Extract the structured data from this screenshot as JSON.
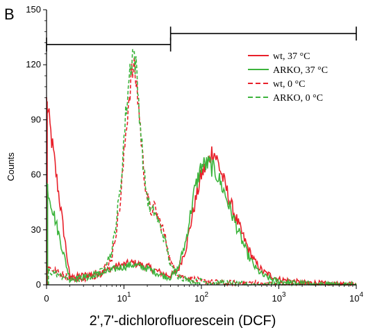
{
  "chart_data": {
    "type": "line",
    "panel_label": "B",
    "xlabel": "2',7'-dichlorofluorescein (DCF)",
    "ylabel": "Counts",
    "xscale": "log",
    "xlim": [
      1,
      10000
    ],
    "ylim": [
      0,
      150
    ],
    "x_ticks": [
      {
        "value": 1,
        "base": "0",
        "exp": ""
      },
      {
        "value": 10,
        "base": "10",
        "exp": "1"
      },
      {
        "value": 100,
        "base": "10",
        "exp": "2"
      },
      {
        "value": 1000,
        "base": "10",
        "exp": "3"
      },
      {
        "value": 10000,
        "base": "10",
        "exp": "4"
      }
    ],
    "y_ticks": [
      {
        "value": 0,
        "label": "0"
      },
      {
        "value": 30,
        "label": "30"
      },
      {
        "value": 60,
        "label": "60"
      },
      {
        "value": 90,
        "label": "90"
      },
      {
        "value": 120,
        "label": "120"
      },
      {
        "value": 150,
        "label": "150"
      }
    ],
    "gates": [
      {
        "x_start": 1,
        "x_end": 40,
        "y": 131
      },
      {
        "x_start": 40,
        "x_end": 10000,
        "y": 137
      }
    ],
    "legend_position": "top-right",
    "series": [
      {
        "name": "wt, 37 °C",
        "color": "#e8202a",
        "dash": "solid",
        "x": [
          1,
          2,
          4,
          6,
          8,
          10,
          13,
          16,
          20,
          25,
          32,
          40,
          50,
          63,
          80,
          100,
          126,
          140,
          160,
          200,
          250,
          320,
          400,
          500,
          630,
          800,
          1000,
          1500,
          2000,
          3000,
          5000,
          10000
        ],
        "y": [
          100,
          4,
          6,
          8,
          10,
          11,
          12,
          11,
          10,
          8,
          6,
          5,
          8,
          20,
          42,
          60,
          68,
          74,
          68,
          55,
          42,
          30,
          20,
          12,
          7,
          5,
          3,
          2,
          1,
          1,
          0,
          0
        ]
      },
      {
        "name": "ARKO, 37 °C",
        "color": "#3cb43c",
        "dash": "solid",
        "x": [
          1,
          2,
          4,
          6,
          8,
          10,
          13,
          16,
          20,
          25,
          32,
          40,
          50,
          63,
          80,
          100,
          126,
          160,
          200,
          250,
          320,
          400,
          500,
          630,
          800,
          1000,
          1500,
          2000,
          3000,
          5000,
          10000
        ],
        "y": [
          55,
          3,
          5,
          7,
          9,
          10,
          11,
          10,
          9,
          7,
          5,
          4,
          9,
          24,
          50,
          65,
          66,
          60,
          50,
          38,
          26,
          16,
          9,
          5,
          3,
          2,
          1,
          1,
          0,
          0,
          0
        ]
      },
      {
        "name": "wt,  0 °C",
        "color": "#e8202a",
        "dash": "dashed",
        "x": [
          1,
          2,
          3,
          5,
          7,
          9,
          10,
          11,
          12,
          13,
          14,
          15,
          16,
          17,
          18,
          20,
          22,
          25,
          28,
          32,
          36,
          40,
          50,
          63,
          80,
          100,
          200,
          500,
          1000,
          10000
        ],
        "y": [
          10,
          4,
          3,
          6,
          15,
          45,
          70,
          92,
          108,
          118,
          115,
          104,
          90,
          75,
          62,
          48,
          40,
          42,
          36,
          30,
          22,
          12,
          6,
          4,
          3,
          2,
          1,
          1,
          0,
          0
        ]
      },
      {
        "name": "ARKO, 0 °C",
        "color": "#3cb43c",
        "dash": "dashed",
        "x": [
          1,
          2,
          3,
          5,
          7,
          9,
          10,
          11,
          12,
          13,
          14,
          15,
          16,
          17,
          18,
          20,
          22,
          25,
          28,
          32,
          36,
          40,
          50,
          63,
          80,
          100,
          200,
          500,
          1000,
          10000
        ],
        "y": [
          8,
          3,
          3,
          7,
          18,
          52,
          80,
          102,
          118,
          128,
          122,
          108,
          92,
          77,
          62,
          48,
          40,
          40,
          34,
          27,
          20,
          10,
          5,
          3,
          2,
          2,
          1,
          0,
          0,
          0
        ]
      }
    ]
  }
}
